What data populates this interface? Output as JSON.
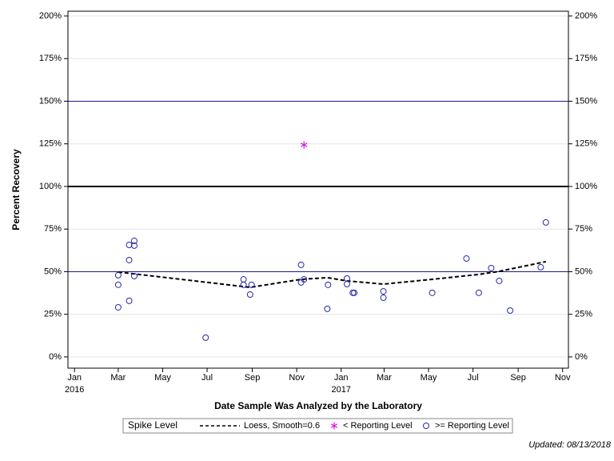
{
  "chart_data": {
    "type": "scatter",
    "y_label": "Percent Recovery",
    "x_label": "Date Sample Was Analyzed by the Laboratory",
    "legend_title": "Spike Level",
    "footnote": "Updated: 08/13/2018",
    "ylim": [
      -6.6,
      202.8
    ],
    "yticks": [
      {
        "value": 0,
        "label": "0%"
      },
      {
        "value": 25,
        "label": "25%"
      },
      {
        "value": 50,
        "label": "50%"
      },
      {
        "value": 75,
        "label": "75%"
      },
      {
        "value": 100,
        "label": "100%"
      },
      {
        "value": 125,
        "label": "125%"
      },
      {
        "value": 150,
        "label": "150%"
      },
      {
        "value": 175,
        "label": "175%"
      },
      {
        "value": 200,
        "label": "200%"
      }
    ],
    "grid": true,
    "xlim": [
      "2015-12-23",
      "2017-11-09"
    ],
    "xticks": [
      {
        "value": "2016-01-01",
        "label": "Jan"
      },
      {
        "value": "2016-03-01",
        "label": "Mar"
      },
      {
        "value": "2016-05-01",
        "label": "May"
      },
      {
        "value": "2016-07-01",
        "label": "Jul"
      },
      {
        "value": "2016-09-01",
        "label": "Sep"
      },
      {
        "value": "2016-11-01",
        "label": "Nov"
      },
      {
        "value": "2017-01-01",
        "label": "Jan"
      },
      {
        "value": "2017-03-01",
        "label": "Mar"
      },
      {
        "value": "2017-05-01",
        "label": "May"
      },
      {
        "value": "2017-07-01",
        "label": "Jul"
      },
      {
        "value": "2017-09-01",
        "label": "Sep"
      },
      {
        "value": "2017-11-01",
        "label": "Nov"
      }
    ],
    "xtick_years": [
      {
        "value": "2016-01-01",
        "label": "2016"
      },
      {
        "value": "2017-01-01",
        "label": "2017"
      }
    ],
    "reference_lines": [
      {
        "value": 50,
        "color": "#1a1a8c",
        "width": 1
      },
      {
        "value": 100,
        "color": "#000000",
        "width": 2
      },
      {
        "value": 150,
        "color": "#1a1a8c",
        "width": 1
      }
    ],
    "series": [
      {
        "name": "Loess, Smooth=0.6",
        "kind": "line",
        "color": "#000000",
        "x": [
          "2016-03-01",
          "2016-08-29",
          "2016-11-07",
          "2016-12-13",
          "2017-01-09",
          "2017-02-28",
          "2017-05-06",
          "2017-07-09",
          "2017-08-06",
          "2017-10-09"
        ],
        "values": [
          49.8,
          40.8,
          45.5,
          46.5,
          44.6,
          42.7,
          45.5,
          48.4,
          50.2,
          55.9
        ]
      },
      {
        "name": "< Reporting Level",
        "kind": "star",
        "color": "#e010e0",
        "x": [
          "2016-11-11"
        ],
        "values": [
          124.4
        ]
      },
      {
        "name": ">= Reporting Level",
        "kind": "circle",
        "color": "#2a2aa8",
        "x": [
          "2016-03-01",
          "2016-03-01",
          "2016-03-01",
          "2016-03-16",
          "2016-03-16",
          "2016-03-16",
          "2016-03-23",
          "2016-03-23",
          "2016-03-23",
          "2016-06-29",
          "2016-08-20",
          "2016-08-20",
          "2016-08-29",
          "2016-08-31",
          "2016-11-07",
          "2016-11-07",
          "2016-11-11",
          "2016-12-13",
          "2016-12-14",
          "2017-01-09",
          "2017-01-09",
          "2017-01-17",
          "2017-01-19",
          "2017-02-28",
          "2017-02-28",
          "2017-05-06",
          "2017-06-22",
          "2017-07-09",
          "2017-07-26",
          "2017-08-06",
          "2017-08-21",
          "2017-10-02",
          "2017-10-09"
        ],
        "values": [
          47.9,
          42.3,
          29.1,
          65.7,
          56.8,
          32.9,
          68.1,
          65.3,
          47.4,
          11.3,
          45.5,
          42.3,
          36.6,
          42.3,
          54.0,
          43.7,
          45.5,
          28.2,
          42.3,
          46.0,
          42.7,
          37.6,
          37.6,
          38.5,
          34.7,
          37.6,
          57.7,
          37.6,
          52.1,
          44.6,
          27.2,
          52.6,
          78.9
        ]
      }
    ]
  }
}
